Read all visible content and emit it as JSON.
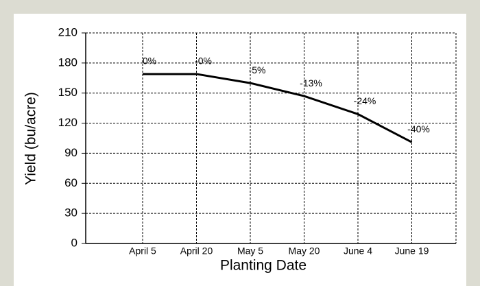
{
  "chart_data": {
    "type": "line",
    "x_label": "Planting Date",
    "y_label": "Yield (bu/acre)",
    "categories": [
      "April 5",
      "April 20",
      "May 5",
      "May 20",
      "June 4",
      "June 19"
    ],
    "values": [
      169,
      169,
      160,
      147,
      129,
      101
    ],
    "annotations": [
      "0%",
      "-0%",
      "-5%",
      "-13%",
      "-24%",
      "-40%"
    ],
    "color": "#000000",
    "ylim": [
      0,
      210
    ],
    "yticks": [
      0,
      30,
      60,
      90,
      120,
      150,
      180,
      210
    ],
    "grid": true
  }
}
